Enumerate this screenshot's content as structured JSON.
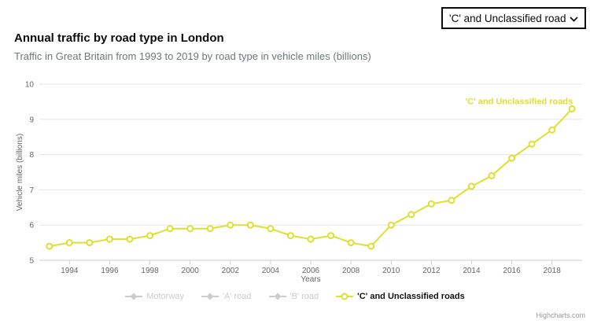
{
  "controls": {
    "road_type_selector": {
      "value": "'C' and Unclassified roads",
      "options": [
        "'C' and Unclassified roads"
      ]
    }
  },
  "chart_data": {
    "type": "line",
    "title": "Annual traffic by road type in London",
    "subtitle": "Traffic in Great Britain from 1993 to 2019 by road type in vehicle miles (billions)",
    "xlabel": "Years",
    "ylabel": "Vehicle miles (billions)",
    "x": [
      1993,
      1994,
      1995,
      1996,
      1997,
      1998,
      1999,
      2000,
      2001,
      2002,
      2003,
      2004,
      2005,
      2006,
      2007,
      2008,
      2009,
      2010,
      2011,
      2012,
      2013,
      2014,
      2015,
      2016,
      2017,
      2018,
      2019
    ],
    "series": [
      {
        "name": "'C' and Unclassified roads",
        "color": "#dee02f",
        "values": [
          5.4,
          5.5,
          5.5,
          5.6,
          5.6,
          5.7,
          5.9,
          5.9,
          5.9,
          6.0,
          6.0,
          5.9,
          5.7,
          5.6,
          5.7,
          5.5,
          5.4,
          6.0,
          6.3,
          6.6,
          6.7,
          7.1,
          7.4,
          7.9,
          8.3,
          8.7,
          9.3
        ]
      }
    ],
    "series_label": "'C' and Unclassified roads",
    "legend": [
      {
        "label": "Motorway",
        "active": false
      },
      {
        "label": "'A' road",
        "active": false
      },
      {
        "label": "'B' road",
        "active": false
      },
      {
        "label": "'C' and Unclassified roads",
        "active": true
      }
    ],
    "ylim": [
      5,
      10
    ],
    "yticks": [
      5,
      6,
      7,
      8,
      9,
      10
    ],
    "xticks": [
      1994,
      1996,
      1998,
      2000,
      2002,
      2004,
      2006,
      2008,
      2010,
      2012,
      2014,
      2016,
      2018
    ],
    "grid": "horizontal",
    "legend_position": "bottom",
    "credit": "Highcharts.com",
    "colors": {
      "series": "#dee02f",
      "disabled_legend": "#cccccc",
      "grid": "#e6e6e6",
      "axis": "#cccccc",
      "axis_text": "#666666"
    }
  }
}
